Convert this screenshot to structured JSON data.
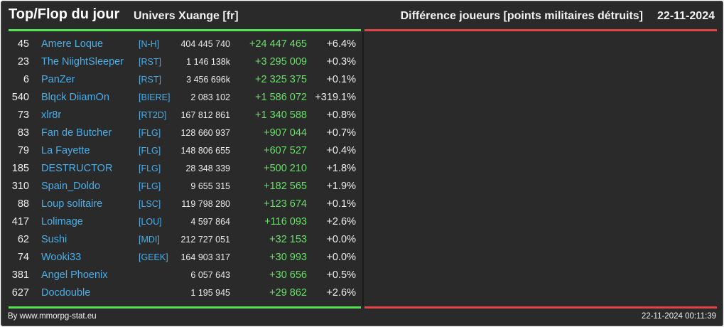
{
  "header": {
    "title": "Top/Flop du jour",
    "univers": "Univers Xuange [fr]",
    "difference": "Différence joueurs [points militaires détruits]",
    "date": "22-11-2024"
  },
  "colors": {
    "background": "#2a2a2a",
    "top_bar": "#55e055",
    "flop_bar": "#e04444",
    "player_name": "#4aaee8",
    "positive_delta": "#66e066"
  },
  "top_rows": [
    {
      "rank": "45",
      "name": "Amere Loque",
      "tag": "[N-H]",
      "points": "404 445 740",
      "delta": "+24 447 465",
      "pct": "+6.4%"
    },
    {
      "rank": "23",
      "name": "The NiightSleeper",
      "tag": "[RST]",
      "points": "1 146 138k",
      "delta": "+3 295 009",
      "pct": "+0.3%"
    },
    {
      "rank": "6",
      "name": "PanZer",
      "tag": "[RST]",
      "points": "3 456 696k",
      "delta": "+2 325 375",
      "pct": "+0.1%"
    },
    {
      "rank": "540",
      "name": "Blqck DiiamOn",
      "tag": "[BIERE]",
      "points": "2 083 102",
      "delta": "+1 586 072",
      "pct": "+319.1%"
    },
    {
      "rank": "73",
      "name": "xlr8r",
      "tag": "[RT2D]",
      "points": "167 812 861",
      "delta": "+1 340 588",
      "pct": "+0.8%"
    },
    {
      "rank": "83",
      "name": "Fan de Butcher",
      "tag": "[FLG]",
      "points": "128 660 937",
      "delta": "+907 044",
      "pct": "+0.7%"
    },
    {
      "rank": "79",
      "name": "La Fayette",
      "tag": "[FLG]",
      "points": "148 806 655",
      "delta": "+607 527",
      "pct": "+0.4%"
    },
    {
      "rank": "185",
      "name": "DESTRUCTOR",
      "tag": "[FLG]",
      "points": "28 348 339",
      "delta": "+500 210",
      "pct": "+1.8%"
    },
    {
      "rank": "310",
      "name": "Spain_Doldo",
      "tag": "[FLG]",
      "points": "9 655 315",
      "delta": "+182 565",
      "pct": "+1.9%"
    },
    {
      "rank": "88",
      "name": "Loup solitaire",
      "tag": "[LSC]",
      "points": "119 798 280",
      "delta": "+123 674",
      "pct": "+0.1%"
    },
    {
      "rank": "417",
      "name": "Lolimage",
      "tag": "[LOU]",
      "points": "4 597 864",
      "delta": "+116 093",
      "pct": "+2.6%"
    },
    {
      "rank": "62",
      "name": "Sushi",
      "tag": "[MDI]",
      "points": "212 727 051",
      "delta": "+32 153",
      "pct": "+0.0%"
    },
    {
      "rank": "74",
      "name": "Wooki33",
      "tag": "[GEEK]",
      "points": "164 903 317",
      "delta": "+30 993",
      "pct": "+0.0%"
    },
    {
      "rank": "381",
      "name": "Angel Phoenix",
      "tag": "",
      "points": "6 057 643",
      "delta": "+30 656",
      "pct": "+0.5%"
    },
    {
      "rank": "627",
      "name": "Docdouble",
      "tag": "",
      "points": "1 195 945",
      "delta": "+29 862",
      "pct": "+2.6%"
    }
  ],
  "footer": {
    "by": "By www.mmorpg-stat.eu",
    "timestamp": "22-11-2024 00:11:39"
  }
}
